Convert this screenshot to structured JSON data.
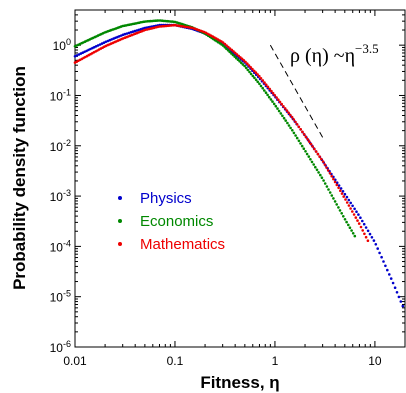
{
  "chart_data": {
    "type": "scatter",
    "xlabel": "Fitness, η",
    "ylabel": "Probability density function",
    "xscale": "log",
    "yscale": "log",
    "xlim": [
      0.01,
      20
    ],
    "ylim": [
      1e-06,
      5
    ],
    "x_ticks": [
      {
        "value": 0.01,
        "label": "0.01"
      },
      {
        "value": 0.1,
        "label": "0.1"
      },
      {
        "value": 1,
        "label": "1"
      },
      {
        "value": 10,
        "label": "10"
      }
    ],
    "y_ticks": [
      {
        "value": 1e-06,
        "base": "10",
        "exp": "-6"
      },
      {
        "value": 1e-05,
        "base": "10",
        "exp": "-5"
      },
      {
        "value": 0.0001,
        "base": "10",
        "exp": "-4"
      },
      {
        "value": 0.001,
        "base": "10",
        "exp": "-3"
      },
      {
        "value": 0.01,
        "base": "10",
        "exp": "-2"
      },
      {
        "value": 0.1,
        "base": "10",
        "exp": "-1"
      },
      {
        "value": 1,
        "base": "10",
        "exp": "0"
      }
    ],
    "legend_position": "left-center",
    "series": [
      {
        "name": "Physics",
        "color": "#0000cc",
        "x": [
          0.01,
          0.02,
          0.03,
          0.05,
          0.07,
          0.1,
          0.15,
          0.2,
          0.3,
          0.5,
          0.7,
          1,
          1.5,
          2,
          3,
          5,
          7,
          10,
          15,
          19
        ],
        "y": [
          0.6,
          1.15,
          1.6,
          2.2,
          2.5,
          2.5,
          2.1,
          1.7,
          1.05,
          0.45,
          0.22,
          0.095,
          0.035,
          0.016,
          0.005,
          0.0011,
          0.0004,
          0.00012,
          2e-05,
          6.5e-06
        ]
      },
      {
        "name": "Economics",
        "color": "#008800",
        "x": [
          0.01,
          0.02,
          0.03,
          0.05,
          0.07,
          0.1,
          0.15,
          0.2,
          0.3,
          0.5,
          0.7,
          1,
          1.5,
          2,
          3,
          5,
          6.3
        ],
        "y": [
          0.95,
          1.8,
          2.4,
          2.95,
          3.1,
          2.9,
          2.25,
          1.7,
          1.0,
          0.38,
          0.17,
          0.065,
          0.02,
          0.008,
          0.0022,
          0.00035,
          0.00016
        ]
      },
      {
        "name": "Mathematics",
        "color": "#ee0000",
        "x": [
          0.01,
          0.02,
          0.03,
          0.05,
          0.07,
          0.1,
          0.15,
          0.2,
          0.3,
          0.5,
          0.7,
          1,
          1.5,
          2,
          3,
          5,
          7,
          8.5
        ],
        "y": [
          0.45,
          0.95,
          1.35,
          2.0,
          2.35,
          2.5,
          2.2,
          1.8,
          1.15,
          0.48,
          0.24,
          0.1,
          0.036,
          0.016,
          0.005,
          0.0009,
          0.00028,
          0.00013
        ]
      }
    ],
    "fit_line": {
      "exponent": -3.5,
      "x": [
        0.9,
        3.0
      ],
      "y": [
        1.0,
        0.0147
      ]
    },
    "annotation": {
      "pre": "ρ (η) ~η",
      "exp": "−3.5"
    }
  }
}
